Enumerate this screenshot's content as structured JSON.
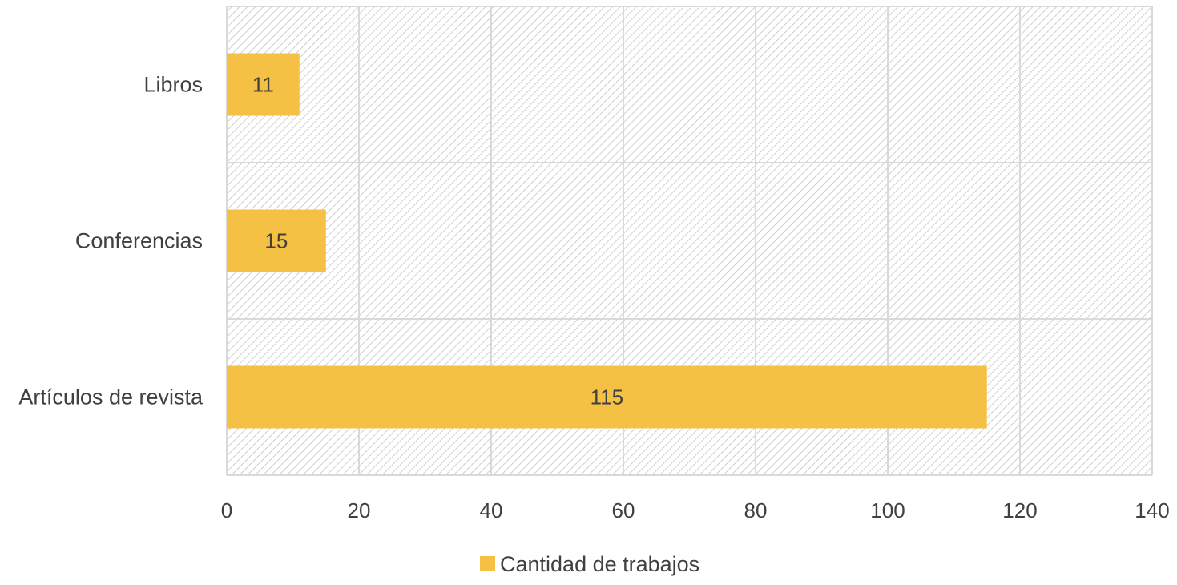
{
  "chart_data": {
    "type": "bar",
    "orientation": "horizontal",
    "categories": [
      "Libros",
      "Conferencias",
      "Artículos de revista"
    ],
    "series": [
      {
        "name": "Cantidad de trabajos",
        "values": [
          11,
          15,
          115
        ]
      }
    ],
    "data_labels": [
      "11",
      "15",
      "115"
    ],
    "xlim": [
      0,
      140
    ],
    "xticks": [
      0,
      20,
      40,
      60,
      80,
      100,
      120,
      140
    ],
    "xtick_labels": [
      "0",
      "20",
      "40",
      "60",
      "80",
      "100",
      "120",
      "140"
    ],
    "grid": true,
    "legend_position": "bottom",
    "colors": {
      "bar": "#F4C145",
      "grid": "#d9d9d9",
      "hatch": "#cfcfcf",
      "text": "#404040"
    }
  }
}
